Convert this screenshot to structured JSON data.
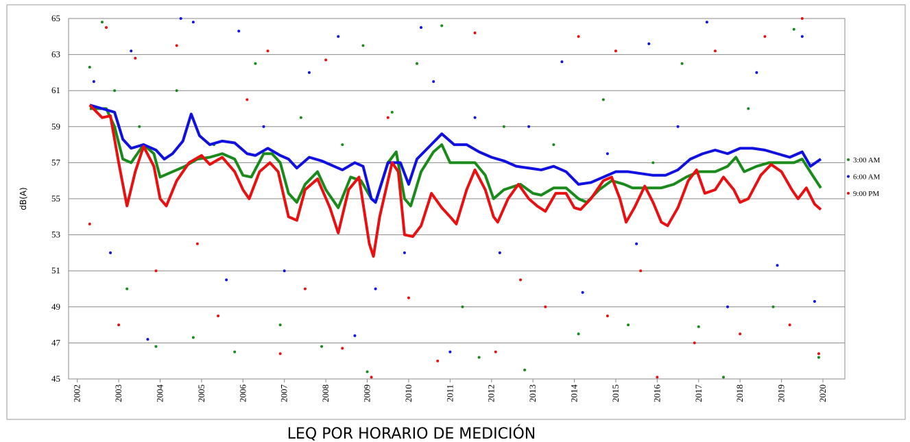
{
  "chart_data": {
    "type": "scatter-trend",
    "title": "LEQ POR HORARIO DE MEDICIÓN",
    "y_label": "dB(A)",
    "xlim": [
      2001.79,
      2020.53
    ],
    "xticks": [
      2002,
      2003,
      2004,
      2005,
      2006,
      2007,
      2008,
      2009,
      2010,
      2011,
      2012,
      2013,
      2014,
      2015,
      2016,
      2017,
      2018,
      2019,
      2020
    ],
    "ylim": [
      45,
      65
    ],
    "yticks": [
      45,
      47,
      49,
      51,
      53,
      55,
      57,
      59,
      61,
      63,
      65
    ],
    "grid": true,
    "legend": "right",
    "series": [
      {
        "name": "3:00 AM",
        "color": "#1a8a1a",
        "x": [
          2002.3,
          2002.6,
          2002.9,
          2003.2,
          2003.5,
          2003.9,
          2004.4,
          2004.8,
          2005.3,
          2005.8,
          2006.3,
          2006.9,
          2007.4,
          2007.9,
          2008.4,
          2008.9,
          2009.0,
          2009.6,
          2010.2,
          2010.8,
          2011.3,
          2011.7,
          2012.3,
          2012.8,
          2013.5,
          2014.1,
          2014.7,
          2015.3,
          2015.9,
          2016.6,
          2017.0,
          2017.6,
          2018.2,
          2018.8,
          2019.3,
          2019.9
        ],
        "values": [
          62.3,
          64.8,
          61,
          50,
          59,
          46.8,
          61,
          47.3,
          58,
          46.5,
          62.5,
          48,
          59.5,
          46.8,
          58,
          63.5,
          45.4,
          59.8,
          62.5,
          64.6,
          49,
          46.2,
          59,
          45.5,
          58,
          47.5,
          60.5,
          48,
          57,
          62.5,
          47.9,
          45.1,
          60,
          49,
          64.4,
          46.2
        ],
        "trend_x": [
          2002.3,
          2002.7,
          2002.9,
          2003.1,
          2003.3,
          2003.6,
          2003.85,
          2004.0,
          2004.3,
          2004.6,
          2004.9,
          2005.2,
          2005.5,
          2005.8,
          2006.0,
          2006.2,
          2006.5,
          2006.7,
          2006.9,
          2007.1,
          2007.3,
          2007.5,
          2007.8,
          2008.0,
          2008.3,
          2008.6,
          2008.85,
          2009.1,
          2009.2,
          2009.5,
          2009.7,
          2009.9,
          2010.05,
          2010.3,
          2010.6,
          2010.8,
          2011.0,
          2011.3,
          2011.6,
          2011.85,
          2012.05,
          2012.3,
          2012.7,
          2013.0,
          2013.2,
          2013.5,
          2013.8,
          2014.1,
          2014.3,
          2014.6,
          2014.9,
          2015.2,
          2015.4,
          2015.8,
          2016.1,
          2016.4,
          2016.7,
          2017.0,
          2017.4,
          2017.7,
          2017.9,
          2018.1,
          2018.4,
          2018.7,
          2019.0,
          2019.3,
          2019.5,
          2019.75,
          2019.95
        ],
        "trend_values": [
          60,
          60,
          59,
          57.2,
          57,
          58,
          57.5,
          56.2,
          56.5,
          56.8,
          57.2,
          57.3,
          57.5,
          57.2,
          56.3,
          56.2,
          57.5,
          57.5,
          57,
          55.3,
          54.8,
          55.8,
          56.5,
          55.5,
          54.5,
          56.2,
          56,
          55,
          54.8,
          57,
          57.6,
          55,
          54.6,
          56.5,
          57.6,
          58,
          57,
          57,
          57,
          56.3,
          55,
          55.5,
          55.8,
          55.3,
          55.2,
          55.6,
          55.6,
          55,
          54.8,
          55.5,
          56,
          55.8,
          55.6,
          55.6,
          55.6,
          55.8,
          56.2,
          56.5,
          56.5,
          56.8,
          57.3,
          56.5,
          56.8,
          57,
          57,
          57,
          57.2,
          56.3,
          55.6
        ]
      },
      {
        "name": "6:00 AM",
        "color": "#1010e0",
        "x": [
          2002.4,
          2002.8,
          2003.3,
          2003.7,
          2004.5,
          2004.8,
          2005.6,
          2005.9,
          2006.5,
          2007.0,
          2007.6,
          2008.3,
          2008.7,
          2009.2,
          2009.9,
          2010.3,
          2010.6,
          2011.0,
          2011.6,
          2012.2,
          2012.9,
          2013.7,
          2014.2,
          2014.8,
          2015.5,
          2015.8,
          2016.5,
          2017.2,
          2017.7,
          2018.4,
          2018.9,
          2019.5,
          2019.8
        ],
        "values": [
          61.5,
          52,
          63.2,
          47.2,
          65,
          64.8,
          50.5,
          64.3,
          59,
          51,
          62,
          64,
          47.4,
          50,
          52,
          64.5,
          61.5,
          46.5,
          59.5,
          52,
          59,
          62.6,
          49.8,
          57.5,
          52.5,
          63.6,
          59,
          64.8,
          49,
          62,
          51.3,
          64,
          49.3
        ],
        "trend_x": [
          2002.3,
          2002.6,
          2002.9,
          2003.1,
          2003.3,
          2003.6,
          2003.9,
          2004.1,
          2004.3,
          2004.55,
          2004.75,
          2004.95,
          2005.2,
          2005.5,
          2005.8,
          2006.1,
          2006.3,
          2006.6,
          2006.9,
          2007.1,
          2007.3,
          2007.6,
          2007.9,
          2008.2,
          2008.4,
          2008.7,
          2008.9,
          2009.1,
          2009.2,
          2009.5,
          2009.8,
          2010.0,
          2010.2,
          2010.5,
          2010.8,
          2011.1,
          2011.4,
          2011.7,
          2012.0,
          2012.3,
          2012.6,
          2012.9,
          2013.2,
          2013.5,
          2013.8,
          2014.1,
          2014.4,
          2014.7,
          2015.0,
          2015.3,
          2015.6,
          2015.9,
          2016.2,
          2016.5,
          2016.8,
          2017.1,
          2017.4,
          2017.7,
          2018.0,
          2018.3,
          2018.6,
          2018.9,
          2019.2,
          2019.5,
          2019.7,
          2019.95
        ],
        "trend_values": [
          60.2,
          60,
          59.8,
          58.3,
          57.8,
          58,
          57.7,
          57.2,
          57.5,
          58.2,
          59.7,
          58.5,
          58,
          58.2,
          58.1,
          57.5,
          57.4,
          57.8,
          57.4,
          57.2,
          56.7,
          57.3,
          57.1,
          56.8,
          56.6,
          57,
          56.8,
          55,
          54.8,
          57,
          57,
          55.8,
          57.2,
          57.9,
          58.6,
          58,
          58,
          57.6,
          57.3,
          57.1,
          56.8,
          56.7,
          56.6,
          56.8,
          56.5,
          55.8,
          55.9,
          56.2,
          56.5,
          56.5,
          56.4,
          56.3,
          56.3,
          56.6,
          57.2,
          57.5,
          57.7,
          57.5,
          57.8,
          57.8,
          57.7,
          57.5,
          57.3,
          57.6,
          56.8,
          57.2
        ]
      },
      {
        "name": "9:00 PM",
        "color": "#e81010",
        "x": [
          2002.3,
          2002.7,
          2003.0,
          2003.4,
          2003.9,
          2004.4,
          2004.9,
          2005.4,
          2006.1,
          2006.6,
          2006.9,
          2007.5,
          2008.0,
          2008.4,
          2009.1,
          2009.5,
          2010.0,
          2010.7,
          2011.6,
          2012.1,
          2012.7,
          2013.3,
          2014.1,
          2014.8,
          2015.0,
          2015.6,
          2016.0,
          2016.9,
          2017.4,
          2018.0,
          2018.6,
          2019.2,
          2019.5,
          2019.9
        ],
        "values": [
          53.6,
          64.5,
          48,
          62.8,
          51,
          63.5,
          52.5,
          48.5,
          60.5,
          63.2,
          46.4,
          50,
          62.7,
          46.7,
          45.1,
          59.5,
          49.5,
          46,
          64.2,
          46.5,
          50.5,
          49,
          64,
          48.5,
          63.2,
          51,
          45.1,
          47,
          63.2,
          47.5,
          64,
          48,
          65,
          46.4
        ],
        "trend_x": [
          2002.3,
          2002.6,
          2002.8,
          2003.0,
          2003.2,
          2003.4,
          2003.6,
          2003.85,
          2004.0,
          2004.15,
          2004.4,
          2004.7,
          2005.0,
          2005.2,
          2005.5,
          2005.8,
          2006.0,
          2006.15,
          2006.4,
          2006.65,
          2006.85,
          2007.1,
          2007.3,
          2007.5,
          2007.8,
          2008.1,
          2008.3,
          2008.55,
          2008.8,
          2009.05,
          2009.15,
          2009.3,
          2009.6,
          2009.75,
          2009.9,
          2010.1,
          2010.3,
          2010.55,
          2010.8,
          2011.0,
          2011.15,
          2011.4,
          2011.6,
          2011.85,
          2012.05,
          2012.15,
          2012.4,
          2012.65,
          2012.9,
          2013.1,
          2013.3,
          2013.55,
          2013.8,
          2014.0,
          2014.15,
          2014.4,
          2014.7,
          2014.9,
          2015.1,
          2015.25,
          2015.45,
          2015.7,
          2015.9,
          2016.1,
          2016.25,
          2016.5,
          2016.75,
          2016.95,
          2017.15,
          2017.4,
          2017.6,
          2017.85,
          2018.0,
          2018.2,
          2018.5,
          2018.75,
          2019.0,
          2019.25,
          2019.4,
          2019.6,
          2019.8,
          2019.95
        ],
        "trend_values": [
          60.2,
          59.5,
          59.6,
          57,
          54.6,
          56.5,
          57.9,
          56.8,
          55,
          54.6,
          56,
          57,
          57.4,
          56.9,
          57.3,
          56.5,
          55.5,
          55,
          56.5,
          57,
          56.5,
          54,
          53.8,
          55.5,
          56.1,
          54.5,
          53.1,
          55.5,
          56.2,
          52.5,
          51.8,
          54,
          57,
          56.5,
          53,
          52.9,
          53.5,
          55.3,
          54.5,
          54,
          53.6,
          55.5,
          56.6,
          55.5,
          54,
          53.7,
          55,
          55.8,
          55,
          54.6,
          54.3,
          55.3,
          55.3,
          54.5,
          54.4,
          55,
          56,
          56.2,
          55,
          53.7,
          54.5,
          55.7,
          54.8,
          53.7,
          53.5,
          54.5,
          56,
          56.6,
          55.3,
          55.5,
          56.2,
          55.5,
          54.8,
          55,
          56.3,
          56.9,
          56.5,
          55.5,
          55,
          55.6,
          54.7,
          54.4
        ]
      }
    ]
  }
}
